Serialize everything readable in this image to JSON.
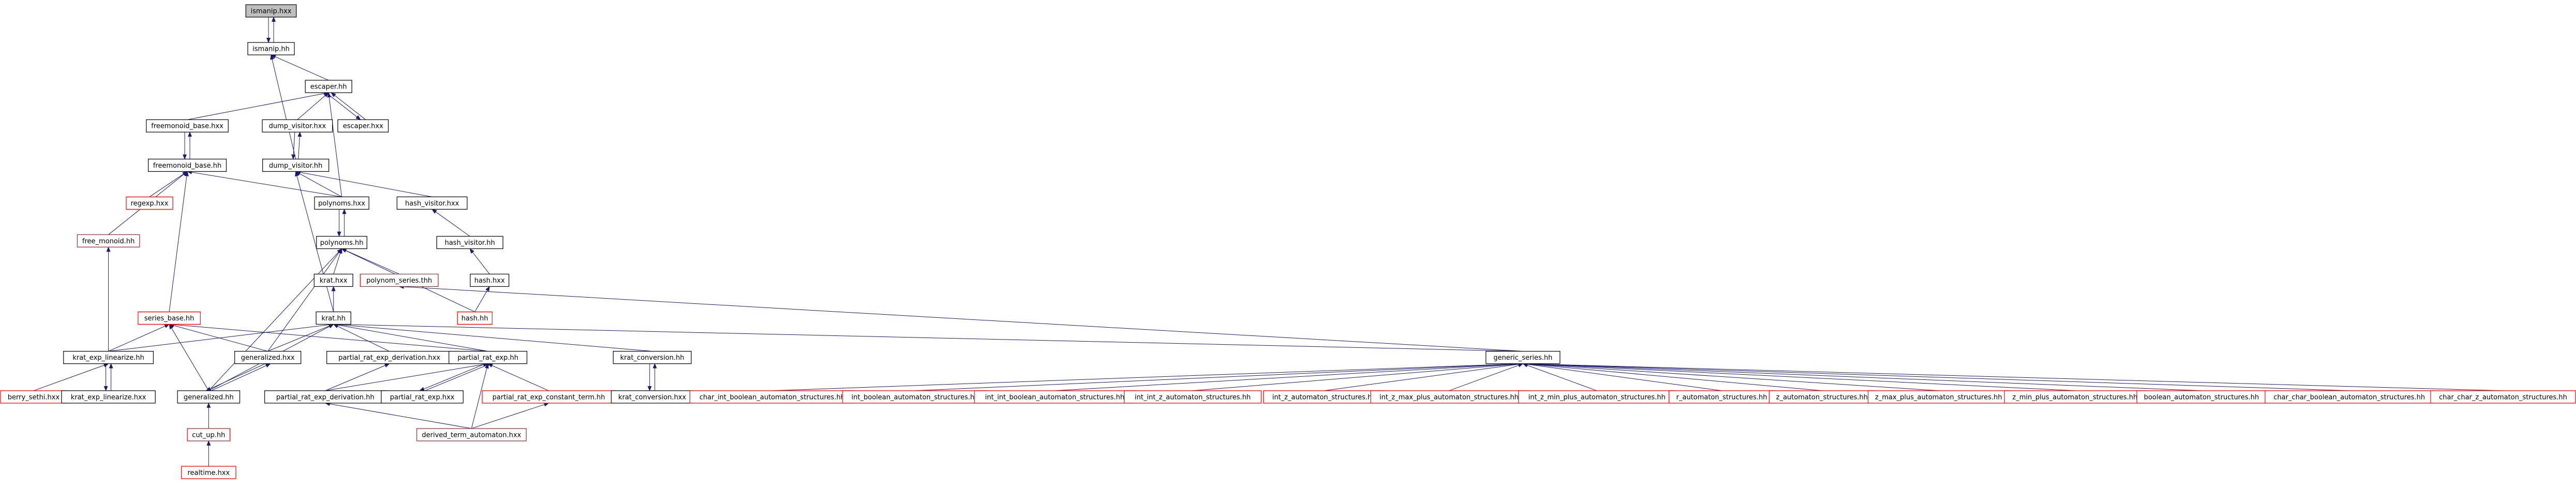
{
  "nodes": [
    {
      "label": "ismanip.hxx"
    },
    {
      "label": "ismanip.hh"
    },
    {
      "label": "escaper.hh"
    },
    {
      "label": "freemonoid_base.hxx"
    },
    {
      "label": "dump_visitor.hxx"
    },
    {
      "label": "escaper.hxx"
    },
    {
      "label": "freemonoid_base.hh"
    },
    {
      "label": "dump_visitor.hh"
    },
    {
      "label": "regexp.hxx"
    },
    {
      "label": "polynoms.hxx"
    },
    {
      "label": "hash_visitor.hxx"
    },
    {
      "label": "free_monoid.hh"
    },
    {
      "label": "polynoms.hh"
    },
    {
      "label": "hash_visitor.hh"
    },
    {
      "label": "krat.hxx"
    },
    {
      "label": "polynom_series.thh"
    },
    {
      "label": "hash.hxx"
    },
    {
      "label": "series_base.hh"
    },
    {
      "label": "krat.hh"
    },
    {
      "label": "hash.hh"
    },
    {
      "label": "krat_exp_linearize.hh"
    },
    {
      "label": "generalized.hxx"
    },
    {
      "label": "partial_rat_exp_derivation.hxx"
    },
    {
      "label": "partial_rat_exp.hh"
    },
    {
      "label": "krat_conversion.hh"
    },
    {
      "label": "generic_series.hh"
    },
    {
      "label": "berry_sethi.hxx"
    },
    {
      "label": "krat_exp_linearize.hxx"
    },
    {
      "label": "generalized.hh"
    },
    {
      "label": "partial_rat_exp_derivation.hh"
    },
    {
      "label": "partial_rat_exp.hxx"
    },
    {
      "label": "partial_rat_exp_constant_term.hh"
    },
    {
      "label": "krat_conversion.hxx"
    },
    {
      "label": "char_int_boolean_automaton_structures.hh"
    },
    {
      "label": "int_boolean_automaton_structures.hh"
    },
    {
      "label": "int_int_boolean_automaton_structures.hh"
    },
    {
      "label": "int_int_z_automaton_structures.hh"
    },
    {
      "label": "int_z_automaton_structures.hh"
    },
    {
      "label": "int_z_max_plus_automaton_structures.hh"
    },
    {
      "label": "int_z_min_plus_automaton_structures.hh"
    },
    {
      "label": "r_automaton_structures.hh"
    },
    {
      "label": "z_automaton_structures.hh"
    },
    {
      "label": "z_max_plus_automaton_structures.hh"
    },
    {
      "label": "z_min_plus_automaton_structures.hh"
    },
    {
      "label": "boolean_automaton_structures.hh"
    },
    {
      "label": "char_char_boolean_automaton_structures.hh"
    },
    {
      "label": "char_char_z_automaton_structures.hh"
    },
    {
      "label": "derived_term_automaton.hxx"
    },
    {
      "label": "cut_up.hh"
    },
    {
      "label": "realtime.hxx"
    }
  ]
}
